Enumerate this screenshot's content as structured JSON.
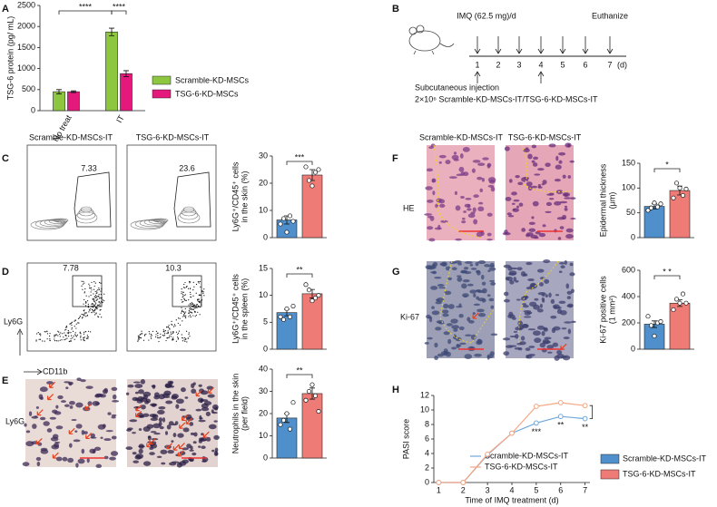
{
  "panels": [
    "A",
    "B",
    "C",
    "D",
    "E",
    "F",
    "G",
    "H"
  ],
  "schematic": {
    "treatment": "IMQ (62.5 mg)/d",
    "end": "Euthanize",
    "days": [
      "1",
      "2",
      "3",
      "4",
      "5",
      "6",
      "7"
    ],
    "unit": "(d)",
    "injection": "Subcutaneous injection",
    "dose": "2×10⁶  Scramble-KD-MSCs-IT/TSG-6-KD-MSCs-IT"
  },
  "column_titles": [
    "Scramble-KD-MSCs-IT",
    "TSG-6-KD-MSCs-IT"
  ],
  "row_labels": {
    "he": "HE",
    "ki67": "Ki-67",
    "ly6g": "Ly6G"
  },
  "flow": {
    "gates_c": [
      "7.33",
      "23.6"
    ],
    "gates_d": [
      "7.78",
      "10.3"
    ],
    "y_axis": "Ly6G",
    "x_axis": "CD11b"
  },
  "legend": {
    "names": [
      "Scramble-KD-MSCs-IT",
      "TSG-6-KD-MSCs-IT"
    ],
    "colors": [
      "#4f8fcb",
      "#ef7b76"
    ]
  },
  "chart_data": [
    {
      "type": "bar",
      "ylabel": [
        "TSG-6 protein (pg/ mL)"
      ],
      "categories": [
        "No treat",
        "IT"
      ],
      "series": [
        {
          "name": "Scramble-KD-MSCs",
          "color": "#8dc63f",
          "values": [
            450,
            1870
          ],
          "errors": [
            50,
            90
          ]
        },
        {
          "name": "TSG-6-KD-MSCs",
          "color": "#e5197b",
          "values": [
            450,
            880
          ],
          "errors": [
            20,
            70
          ]
        }
      ],
      "ylim": [
        0,
        2500
      ],
      "yticks": [
        0,
        500,
        1000,
        1500,
        2000,
        2500
      ],
      "significance": [
        "****",
        "****"
      ]
    },
    {
      "type": "bar",
      "ylabel": [
        "Ly6G⁺/CD45⁺ cells",
        "in the skin (%)"
      ],
      "categories": [
        null,
        null
      ],
      "values": [
        6.5,
        23
      ],
      "errors": [
        1.5,
        2
      ],
      "colors": [
        "#4f8fcb",
        "#ef7b76"
      ],
      "points": [
        [
          5,
          7,
          2,
          8,
          6
        ],
        [
          26,
          21,
          19,
          24,
          25
        ]
      ],
      "ylim": [
        0,
        30
      ],
      "yticks": [
        0,
        10,
        20,
        30
      ],
      "significance": [
        "***"
      ]
    },
    {
      "type": "bar",
      "ylabel": [
        "Ly6G⁺/CD45⁺ cells",
        "in the spleen (%)"
      ],
      "categories": [
        null,
        null
      ],
      "values": [
        6.8,
        10.3
      ],
      "errors": [
        0.6,
        0.8
      ],
      "colors": [
        "#4f8fcb",
        "#ef7b76"
      ],
      "points": [
        [
          6,
          5.5,
          7.5,
          6,
          8
        ],
        [
          12,
          11,
          9,
          9.5,
          10
        ]
      ],
      "ylim": [
        0,
        15
      ],
      "yticks": [
        0,
        5,
        10,
        15
      ],
      "significance": [
        "**"
      ]
    },
    {
      "type": "bar",
      "ylabel": [
        "Neutrophils in the skin",
        "(per field)"
      ],
      "categories": [
        null,
        null
      ],
      "values": [
        18,
        29
      ],
      "errors": [
        2,
        2.5
      ],
      "colors": [
        "#4f8fcb",
        "#ef7b76"
      ],
      "points": [
        [
          15,
          17,
          20,
          13,
          25
        ],
        [
          26,
          30,
          33,
          28,
          21
        ]
      ],
      "ylim": [
        0,
        40
      ],
      "yticks": [
        0,
        10,
        20,
        30,
        40
      ],
      "significance": [
        "**"
      ]
    },
    {
      "type": "bar",
      "ylabel": [
        "Epidermal thickness",
        "(μm)"
      ],
      "categories": [
        null,
        null
      ],
      "values": [
        63,
        95
      ],
      "errors": [
        5,
        9
      ],
      "colors": [
        "#4f8fcb",
        "#ef7b76"
      ],
      "points": [
        [
          55,
          60,
          70,
          62,
          68
        ],
        [
          80,
          110,
          100,
          85,
          98
        ]
      ],
      "ylim": [
        0,
        150
      ],
      "yticks": [
        0,
        50,
        100,
        150
      ],
      "significance": [
        "*"
      ]
    },
    {
      "type": "bar",
      "ylabel": [
        "Ki-67 positive cells",
        "(1 mm²)"
      ],
      "categories": [
        null,
        null
      ],
      "values": [
        190,
        350
      ],
      "errors": [
        25,
        25
      ],
      "colors": [
        "#4f8fcb",
        "#ef7b76"
      ],
      "points": [
        [
          250,
          180,
          100,
          200,
          210
        ],
        [
          300,
          380,
          350,
          420,
          350
        ]
      ],
      "ylim": [
        0,
        600
      ],
      "yticks": [
        0,
        200,
        400,
        600
      ],
      "significance": [
        "* *"
      ]
    },
    {
      "type": "line",
      "ylabel": [
        "PASI score"
      ],
      "xlabel": "Time of IMQ treatment (d)",
      "x": [
        1,
        2,
        3,
        4,
        5,
        6,
        7
      ],
      "xlim": [
        0.8,
        7.2
      ],
      "xticks": [
        1,
        2,
        3,
        4,
        5,
        6,
        7
      ],
      "ylim": [
        0,
        12
      ],
      "yticks": [
        0,
        2,
        4,
        6,
        8,
        10,
        12
      ],
      "series": [
        {
          "name": "Scramble-KD-MSCs-IT",
          "color": "#6fa8dc",
          "values": [
            0,
            0,
            3.8,
            6.8,
            8.2,
            9.1,
            8.8
          ]
        },
        {
          "name": "TSG-6-KD-MSCs-IT",
          "color": "#f4a582",
          "values": [
            0,
            0,
            3.9,
            6.8,
            10.5,
            11,
            10.6
          ]
        }
      ],
      "significance": [
        "***",
        "**",
        "**"
      ]
    }
  ]
}
